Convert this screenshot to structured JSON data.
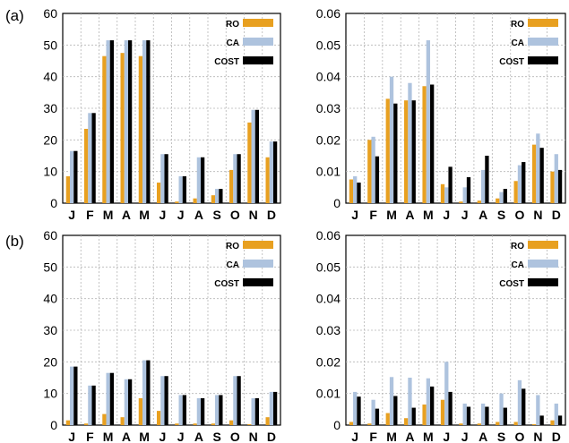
{
  "row_labels": [
    "(a)",
    "(b)"
  ],
  "colors": {
    "RO": "#e8a020",
    "CA": "#aec3de",
    "COST": "#000000"
  },
  "chart_data": [
    {
      "type": "bar",
      "row": "(a)",
      "categories": [
        "J",
        "F",
        "M",
        "A",
        "M",
        "J",
        "J",
        "A",
        "S",
        "O",
        "N",
        "D"
      ],
      "ylim": [
        0,
        60
      ],
      "yticks": [
        "0",
        "10",
        "20",
        "30",
        "40",
        "50",
        "60"
      ],
      "grid": true,
      "legend": "top-right",
      "series": [
        {
          "name": "RO",
          "values": [
            8.5,
            23.5,
            46.5,
            47.5,
            46.5,
            6.5,
            0.5,
            1.5,
            2.5,
            10.5,
            25.5,
            14.5
          ]
        },
        {
          "name": "CA",
          "values": [
            16.5,
            28.5,
            51.5,
            51.5,
            51.5,
            15.5,
            8.5,
            14.5,
            4.5,
            15.5,
            29.5,
            19.5
          ]
        },
        {
          "name": "COST",
          "values": [
            16.5,
            28.5,
            51.5,
            51.5,
            51.5,
            15.5,
            8.5,
            14.5,
            4.5,
            15.5,
            29.5,
            19.5
          ]
        }
      ]
    },
    {
      "type": "bar",
      "row": "(a)",
      "categories": [
        "J",
        "F",
        "M",
        "A",
        "M",
        "J",
        "J",
        "A",
        "S",
        "O",
        "N",
        "D"
      ],
      "ylim": [
        0,
        0.06
      ],
      "yticks": [
        "0",
        "0.01",
        "0.02",
        "0.03",
        "0.04",
        "0.05",
        "0.06"
      ],
      "grid": true,
      "legend": "top-right",
      "series": [
        {
          "name": "RO",
          "values": [
            0.0075,
            0.02,
            0.033,
            0.0325,
            0.037,
            0.006,
            0.0005,
            0.0008,
            0.0015,
            0.007,
            0.0185,
            0.01
          ]
        },
        {
          "name": "CA",
          "values": [
            0.0085,
            0.021,
            0.04,
            0.038,
            0.0515,
            0.005,
            0.005,
            0.0105,
            0.0035,
            0.012,
            0.022,
            0.0155
          ]
        },
        {
          "name": "COST",
          "values": [
            0.0065,
            0.0148,
            0.0315,
            0.0325,
            0.0375,
            0.0115,
            0.0082,
            0.015,
            0.0045,
            0.013,
            0.0175,
            0.0105
          ]
        }
      ]
    },
    {
      "type": "bar",
      "row": "(b)",
      "categories": [
        "J",
        "F",
        "M",
        "A",
        "M",
        "J",
        "J",
        "A",
        "S",
        "O",
        "N",
        "D"
      ],
      "ylim": [
        0,
        60
      ],
      "yticks": [
        "0",
        "10",
        "20",
        "30",
        "40",
        "50",
        "60"
      ],
      "grid": true,
      "legend": "top-right",
      "series": [
        {
          "name": "RO",
          "values": [
            1.5,
            0.5,
            3.5,
            2.5,
            8.5,
            4.5,
            0.5,
            0.5,
            0.5,
            1.5,
            0.3,
            2.5
          ]
        },
        {
          "name": "CA",
          "values": [
            18.5,
            12.5,
            16.5,
            14.5,
            20.5,
            15.5,
            9.5,
            8.5,
            9.5,
            15.5,
            8.5,
            10.5
          ]
        },
        {
          "name": "COST",
          "values": [
            18.5,
            12.5,
            16.5,
            14.5,
            20.5,
            15.5,
            9.5,
            8.5,
            9.5,
            15.5,
            8.5,
            10.5
          ]
        }
      ]
    },
    {
      "type": "bar",
      "row": "(b)",
      "categories": [
        "J",
        "F",
        "M",
        "A",
        "M",
        "J",
        "J",
        "A",
        "S",
        "O",
        "N",
        "D"
      ],
      "ylim": [
        0,
        0.06
      ],
      "yticks": [
        "0",
        "0.01",
        "0.02",
        "0.03",
        "0.04",
        "0.05",
        "0.06"
      ],
      "grid": true,
      "legend": "top-right",
      "series": [
        {
          "name": "RO",
          "values": [
            0.001,
            0.0005,
            0.0038,
            0.0022,
            0.0065,
            0.008,
            0.0005,
            0.0005,
            0.001,
            0.001,
            0.0003,
            0.0015
          ]
        },
        {
          "name": "CA",
          "values": [
            0.0105,
            0.008,
            0.0152,
            0.015,
            0.0148,
            0.02,
            0.0068,
            0.0068,
            0.01,
            0.0142,
            0.0095,
            0.0068
          ]
        },
        {
          "name": "COST",
          "values": [
            0.009,
            0.0052,
            0.0092,
            0.0055,
            0.0122,
            0.0105,
            0.0058,
            0.0058,
            0.0055,
            0.0115,
            0.003,
            0.003
          ]
        }
      ]
    }
  ]
}
